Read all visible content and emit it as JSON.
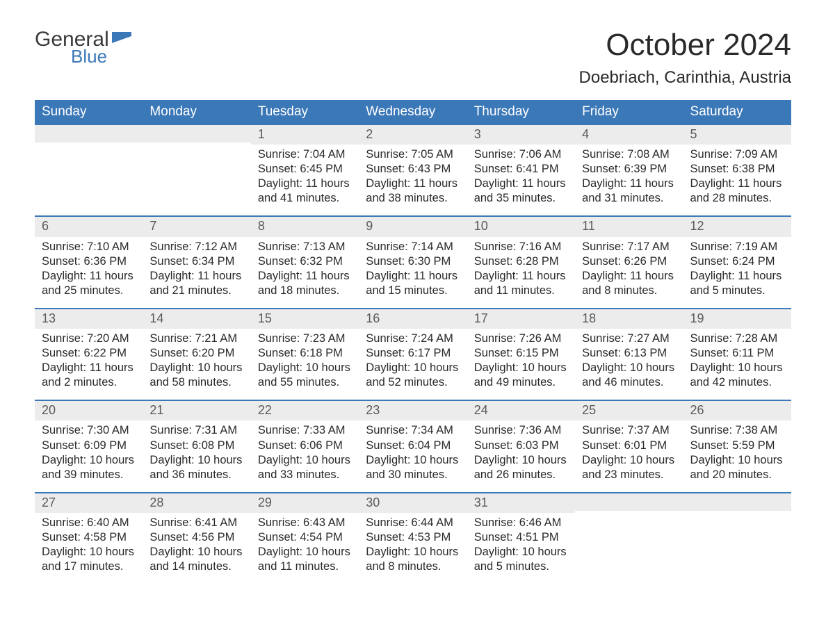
{
  "logo": {
    "text_main": "General",
    "text_sub": "Blue",
    "flag_color": "#3b78b8"
  },
  "title": "October 2024",
  "location": "Doebriach, Carinthia, Austria",
  "colors": {
    "header_bg": "#3b78b8",
    "header_text": "#ffffff",
    "daynum_bg": "#ececec",
    "daynum_text": "#5a5a5a",
    "body_text": "#2a2a2a",
    "row_border": "#3b78b8",
    "page_bg": "#ffffff"
  },
  "weekdays": [
    "Sunday",
    "Monday",
    "Tuesday",
    "Wednesday",
    "Thursday",
    "Friday",
    "Saturday"
  ],
  "weeks": [
    [
      null,
      null,
      {
        "n": "1",
        "sunrise": "7:04 AM",
        "sunset": "6:45 PM",
        "daylight": "11 hours and 41 minutes."
      },
      {
        "n": "2",
        "sunrise": "7:05 AM",
        "sunset": "6:43 PM",
        "daylight": "11 hours and 38 minutes."
      },
      {
        "n": "3",
        "sunrise": "7:06 AM",
        "sunset": "6:41 PM",
        "daylight": "11 hours and 35 minutes."
      },
      {
        "n": "4",
        "sunrise": "7:08 AM",
        "sunset": "6:39 PM",
        "daylight": "11 hours and 31 minutes."
      },
      {
        "n": "5",
        "sunrise": "7:09 AM",
        "sunset": "6:38 PM",
        "daylight": "11 hours and 28 minutes."
      }
    ],
    [
      {
        "n": "6",
        "sunrise": "7:10 AM",
        "sunset": "6:36 PM",
        "daylight": "11 hours and 25 minutes."
      },
      {
        "n": "7",
        "sunrise": "7:12 AM",
        "sunset": "6:34 PM",
        "daylight": "11 hours and 21 minutes."
      },
      {
        "n": "8",
        "sunrise": "7:13 AM",
        "sunset": "6:32 PM",
        "daylight": "11 hours and 18 minutes."
      },
      {
        "n": "9",
        "sunrise": "7:14 AM",
        "sunset": "6:30 PM",
        "daylight": "11 hours and 15 minutes."
      },
      {
        "n": "10",
        "sunrise": "7:16 AM",
        "sunset": "6:28 PM",
        "daylight": "11 hours and 11 minutes."
      },
      {
        "n": "11",
        "sunrise": "7:17 AM",
        "sunset": "6:26 PM",
        "daylight": "11 hours and 8 minutes."
      },
      {
        "n": "12",
        "sunrise": "7:19 AM",
        "sunset": "6:24 PM",
        "daylight": "11 hours and 5 minutes."
      }
    ],
    [
      {
        "n": "13",
        "sunrise": "7:20 AM",
        "sunset": "6:22 PM",
        "daylight": "11 hours and 2 minutes."
      },
      {
        "n": "14",
        "sunrise": "7:21 AM",
        "sunset": "6:20 PM",
        "daylight": "10 hours and 58 minutes."
      },
      {
        "n": "15",
        "sunrise": "7:23 AM",
        "sunset": "6:18 PM",
        "daylight": "10 hours and 55 minutes."
      },
      {
        "n": "16",
        "sunrise": "7:24 AM",
        "sunset": "6:17 PM",
        "daylight": "10 hours and 52 minutes."
      },
      {
        "n": "17",
        "sunrise": "7:26 AM",
        "sunset": "6:15 PM",
        "daylight": "10 hours and 49 minutes."
      },
      {
        "n": "18",
        "sunrise": "7:27 AM",
        "sunset": "6:13 PM",
        "daylight": "10 hours and 46 minutes."
      },
      {
        "n": "19",
        "sunrise": "7:28 AM",
        "sunset": "6:11 PM",
        "daylight": "10 hours and 42 minutes."
      }
    ],
    [
      {
        "n": "20",
        "sunrise": "7:30 AM",
        "sunset": "6:09 PM",
        "daylight": "10 hours and 39 minutes."
      },
      {
        "n": "21",
        "sunrise": "7:31 AM",
        "sunset": "6:08 PM",
        "daylight": "10 hours and 36 minutes."
      },
      {
        "n": "22",
        "sunrise": "7:33 AM",
        "sunset": "6:06 PM",
        "daylight": "10 hours and 33 minutes."
      },
      {
        "n": "23",
        "sunrise": "7:34 AM",
        "sunset": "6:04 PM",
        "daylight": "10 hours and 30 minutes."
      },
      {
        "n": "24",
        "sunrise": "7:36 AM",
        "sunset": "6:03 PM",
        "daylight": "10 hours and 26 minutes."
      },
      {
        "n": "25",
        "sunrise": "7:37 AM",
        "sunset": "6:01 PM",
        "daylight": "10 hours and 23 minutes."
      },
      {
        "n": "26",
        "sunrise": "7:38 AM",
        "sunset": "5:59 PM",
        "daylight": "10 hours and 20 minutes."
      }
    ],
    [
      {
        "n": "27",
        "sunrise": "6:40 AM",
        "sunset": "4:58 PM",
        "daylight": "10 hours and 17 minutes."
      },
      {
        "n": "28",
        "sunrise": "6:41 AM",
        "sunset": "4:56 PM",
        "daylight": "10 hours and 14 minutes."
      },
      {
        "n": "29",
        "sunrise": "6:43 AM",
        "sunset": "4:54 PM",
        "daylight": "10 hours and 11 minutes."
      },
      {
        "n": "30",
        "sunrise": "6:44 AM",
        "sunset": "4:53 PM",
        "daylight": "10 hours and 8 minutes."
      },
      {
        "n": "31",
        "sunrise": "6:46 AM",
        "sunset": "4:51 PM",
        "daylight": "10 hours and 5 minutes."
      },
      null,
      null
    ]
  ],
  "labels": {
    "sunrise": "Sunrise: ",
    "sunset": "Sunset: ",
    "daylight": "Daylight: "
  }
}
